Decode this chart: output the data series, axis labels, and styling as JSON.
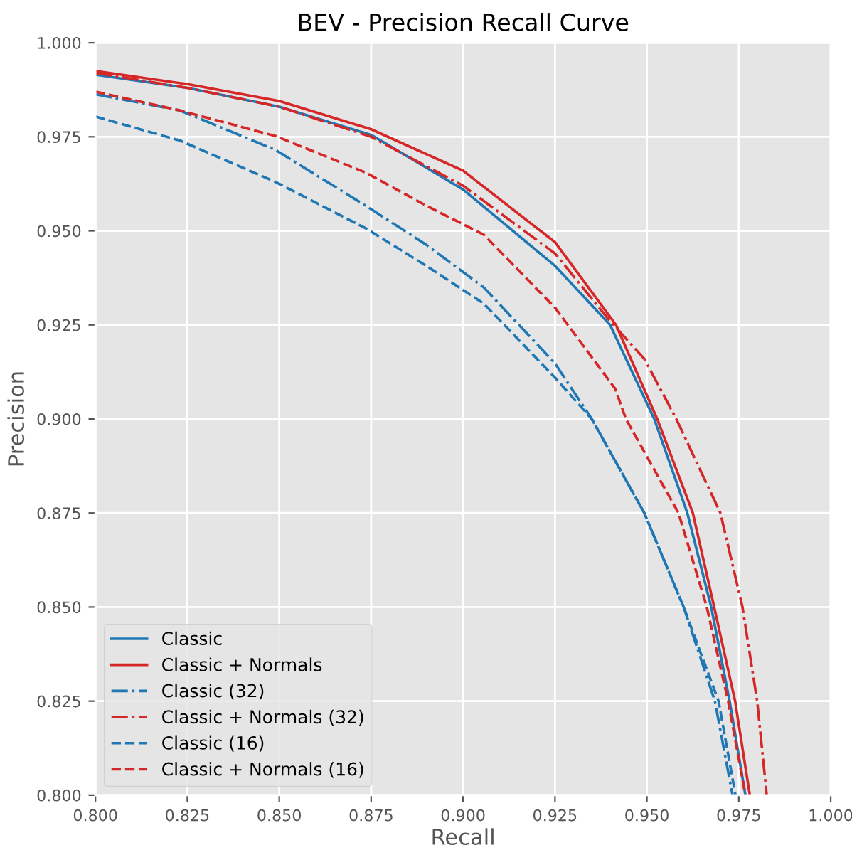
{
  "chart_data": {
    "type": "line",
    "title": "BEV - Precision Recall Curve",
    "xlabel": "Recall",
    "ylabel": "Precision",
    "xlim": [
      0.8,
      1.0
    ],
    "ylim": [
      0.8,
      1.0
    ],
    "xticks": [
      {
        "value": 0.8,
        "label": "0.800"
      },
      {
        "value": 0.825,
        "label": "0.825"
      },
      {
        "value": 0.85,
        "label": "0.850"
      },
      {
        "value": 0.875,
        "label": "0.875"
      },
      {
        "value": 0.9,
        "label": "0.900"
      },
      {
        "value": 0.925,
        "label": "0.925"
      },
      {
        "value": 0.95,
        "label": "0.950"
      },
      {
        "value": 0.975,
        "label": "0.975"
      },
      {
        "value": 1.0,
        "label": "1.000"
      }
    ],
    "yticks": [
      {
        "value": 0.8,
        "label": "0.800"
      },
      {
        "value": 0.825,
        "label": "0.825"
      },
      {
        "value": 0.85,
        "label": "0.850"
      },
      {
        "value": 0.875,
        "label": "0.875"
      },
      {
        "value": 0.9,
        "label": "0.900"
      },
      {
        "value": 0.925,
        "label": "0.925"
      },
      {
        "value": 0.95,
        "label": "0.950"
      },
      {
        "value": 0.975,
        "label": "0.975"
      },
      {
        "value": 1.0,
        "label": "1.000"
      }
    ],
    "grid": true,
    "legend": "bottom left",
    "series": [
      {
        "name": "Classic",
        "color": "#1f77b4",
        "line_style": "solid",
        "x": [
          0.8,
          0.825,
          0.85,
          0.875,
          0.9,
          0.925,
          0.94,
          0.952,
          0.961,
          0.9675,
          0.9725,
          0.9768
        ],
        "values": [
          0.9915,
          0.988,
          0.983,
          0.9755,
          0.961,
          0.9407,
          0.925,
          0.9,
          0.875,
          0.85,
          0.825,
          0.8
        ]
      },
      {
        "name": "Classic + Normals",
        "color": "#d62728",
        "line_style": "solid",
        "x": [
          0.8,
          0.825,
          0.85,
          0.875,
          0.9,
          0.925,
          0.9416,
          0.9528,
          0.9625,
          0.9683,
          0.974,
          0.978
        ],
        "values": [
          0.9925,
          0.989,
          0.9845,
          0.977,
          0.966,
          0.947,
          0.925,
          0.9,
          0.875,
          0.85,
          0.825,
          0.8
        ]
      },
      {
        "name": "Classic (32)",
        "color": "#1f77b4",
        "line_style": "dashdot",
        "x": [
          0.8,
          0.823,
          0.849,
          0.8735,
          0.89,
          0.9056,
          0.925,
          0.935,
          0.9493,
          0.96,
          0.9685,
          0.9733
        ],
        "values": [
          0.9863,
          0.982,
          0.9715,
          0.9567,
          0.9463,
          0.935,
          0.9148,
          0.9,
          0.875,
          0.85,
          0.825,
          0.8
        ]
      },
      {
        "name": "Classic + Normals (32)",
        "color": "#d62728",
        "line_style": "dashdot",
        "x": [
          0.8,
          0.825,
          0.85,
          0.875,
          0.9,
          0.925,
          0.94,
          0.9493,
          0.958,
          0.97,
          0.976,
          0.98,
          0.9826
        ],
        "values": [
          0.992,
          0.988,
          0.983,
          0.975,
          0.962,
          0.944,
          0.926,
          0.916,
          0.9,
          0.875,
          0.85,
          0.825,
          0.8
        ]
      },
      {
        "name": "Classic (16)",
        "color": "#1f77b4",
        "line_style": "dashed",
        "x": [
          0.8,
          0.823,
          0.849,
          0.8735,
          0.89,
          0.9056,
          0.925,
          0.935,
          0.9493,
          0.96,
          0.9695,
          0.9741
        ],
        "values": [
          0.9804,
          0.974,
          0.963,
          0.9507,
          0.9407,
          0.9307,
          0.911,
          0.9,
          0.875,
          0.85,
          0.825,
          0.8
        ]
      },
      {
        "name": "Classic + Normals (16)",
        "color": "#d62728",
        "line_style": "dashed",
        "x": [
          0.8,
          0.823,
          0.849,
          0.8735,
          0.89,
          0.9056,
          0.925,
          0.9414,
          0.9443,
          0.9586,
          0.9663,
          0.9721,
          0.9768
        ],
        "values": [
          0.987,
          0.982,
          0.9752,
          0.9655,
          0.9567,
          0.949,
          0.9296,
          0.908,
          0.9,
          0.875,
          0.85,
          0.825,
          0.8
        ]
      }
    ]
  }
}
